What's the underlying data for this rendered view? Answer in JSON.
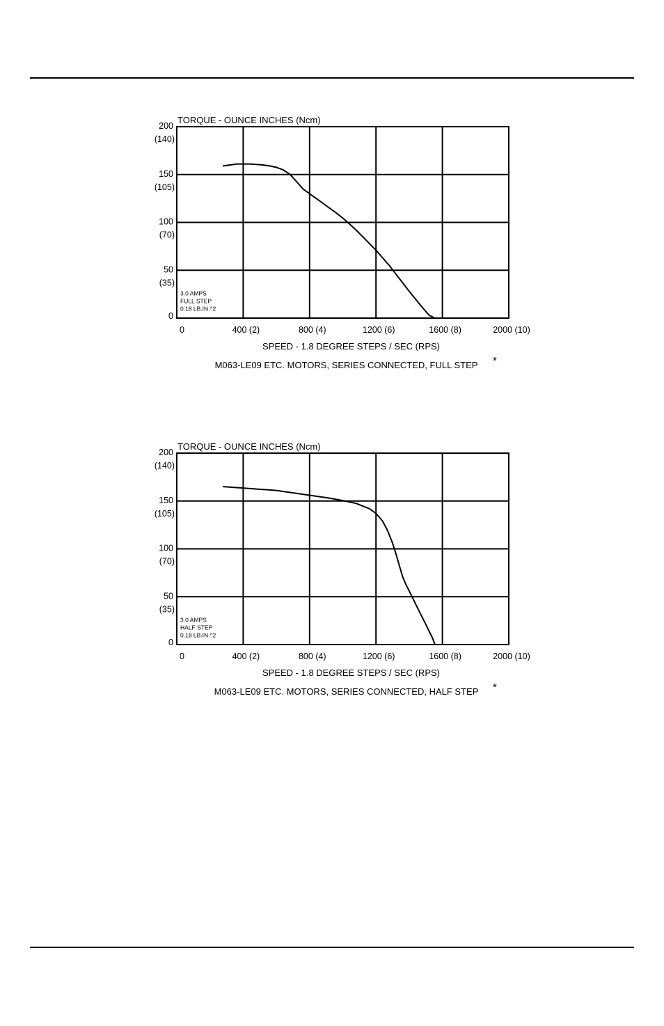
{
  "chart_data": [
    {
      "type": "line",
      "title": "TORQUE - OUNCE INCHES (Ncm)",
      "xlabel": "SPEED - 1.8 DEGREE STEPS / SEC (RPS)",
      "caption": "M063-LE09 ETC. MOTORS, SERIES CONNECTED, FULL STEP",
      "caption_mark": "*",
      "annotation": [
        "3.0 AMPS",
        "FULL STEP",
        "0.18 LB.IN.^2"
      ],
      "x_ticks": [
        "0",
        "400 (2)",
        "800 (4)",
        "1200 (6)",
        "1600 (8)",
        "2000 (10)"
      ],
      "y_ticks": [
        {
          "value": 200,
          "label": "200",
          "sub": "(140)"
        },
        {
          "value": 150,
          "label": "150",
          "sub": "(105)"
        },
        {
          "value": 100,
          "label": "100",
          "sub": "(70)"
        },
        {
          "value": 50,
          "label": "50",
          "sub": "(35)"
        },
        {
          "value": 0,
          "label": "0",
          "sub": ""
        }
      ],
      "xlim": [
        0,
        2000
      ],
      "ylim": [
        0,
        200
      ],
      "grid": true,
      "x": [
        280,
        320,
        360,
        400,
        440,
        480,
        520,
        560,
        600,
        640,
        680,
        720,
        760,
        800,
        840,
        880,
        920,
        960,
        1000,
        1040,
        1080,
        1120,
        1160,
        1200,
        1240,
        1280,
        1320,
        1360,
        1400,
        1440,
        1480,
        1520,
        1555
      ],
      "values": [
        159,
        160,
        161,
        161,
        161,
        160.5,
        160,
        159,
        157.5,
        155,
        150.5,
        143,
        135,
        130,
        125,
        120,
        115,
        110,
        104.5,
        98.5,
        92,
        85,
        78,
        71,
        63,
        55,
        46,
        37,
        28,
        19.5,
        11,
        3,
        0
      ]
    },
    {
      "type": "line",
      "title": "TORQUE - OUNCE INCHES (Ncm)",
      "xlabel": "SPEED - 1.8 DEGREE STEPS / SEC (RPS)",
      "caption": "M063-LE09 ETC. MOTORS, SERIES CONNECTED, HALF STEP",
      "caption_mark": "*",
      "annotation": [
        "3.0 AMPS",
        "HALF STEP",
        "0.18 LB.IN.^2"
      ],
      "x_ticks": [
        "0",
        "400 (2)",
        "800 (4)",
        "1200 (6)",
        "1600 (8)",
        "2000 (10)"
      ],
      "y_ticks": [
        {
          "value": 200,
          "label": "200",
          "sub": "(140)"
        },
        {
          "value": 150,
          "label": "150",
          "sub": "(105)"
        },
        {
          "value": 100,
          "label": "100",
          "sub": "(70)"
        },
        {
          "value": 50,
          "label": "50",
          "sub": "(35)"
        },
        {
          "value": 0,
          "label": "0",
          "sub": ""
        }
      ],
      "xlim": [
        0,
        2000
      ],
      "ylim": [
        0,
        200
      ],
      "grid": true,
      "x": [
        280,
        360,
        440,
        520,
        600,
        680,
        760,
        840,
        920,
        1000,
        1080,
        1160,
        1200,
        1240,
        1270,
        1300,
        1320,
        1340,
        1360,
        1380,
        1400,
        1420,
        1440,
        1460,
        1480,
        1500,
        1520,
        1540,
        1555
      ],
      "values": [
        165,
        164,
        163,
        162,
        161,
        159,
        157,
        155,
        153,
        150.5,
        147.5,
        142,
        137,
        129,
        119,
        106,
        95,
        83,
        71,
        63,
        56,
        49,
        42,
        35,
        28,
        21,
        14,
        7,
        0
      ]
    }
  ]
}
